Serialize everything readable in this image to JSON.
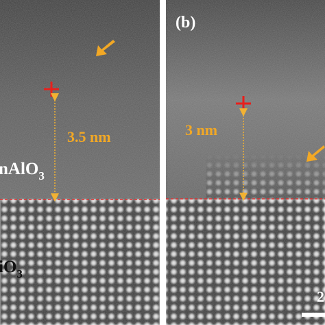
{
  "panel_a": {
    "layer_top": {
      "text": "nAlO",
      "subscript": "3"
    },
    "layer_bottom": {
      "text": "iO",
      "subscript": "3"
    },
    "distance": "3.5 nm"
  },
  "panel_b": {
    "label": "(b)",
    "distance": "3 nm",
    "scale_bar": "2"
  }
}
